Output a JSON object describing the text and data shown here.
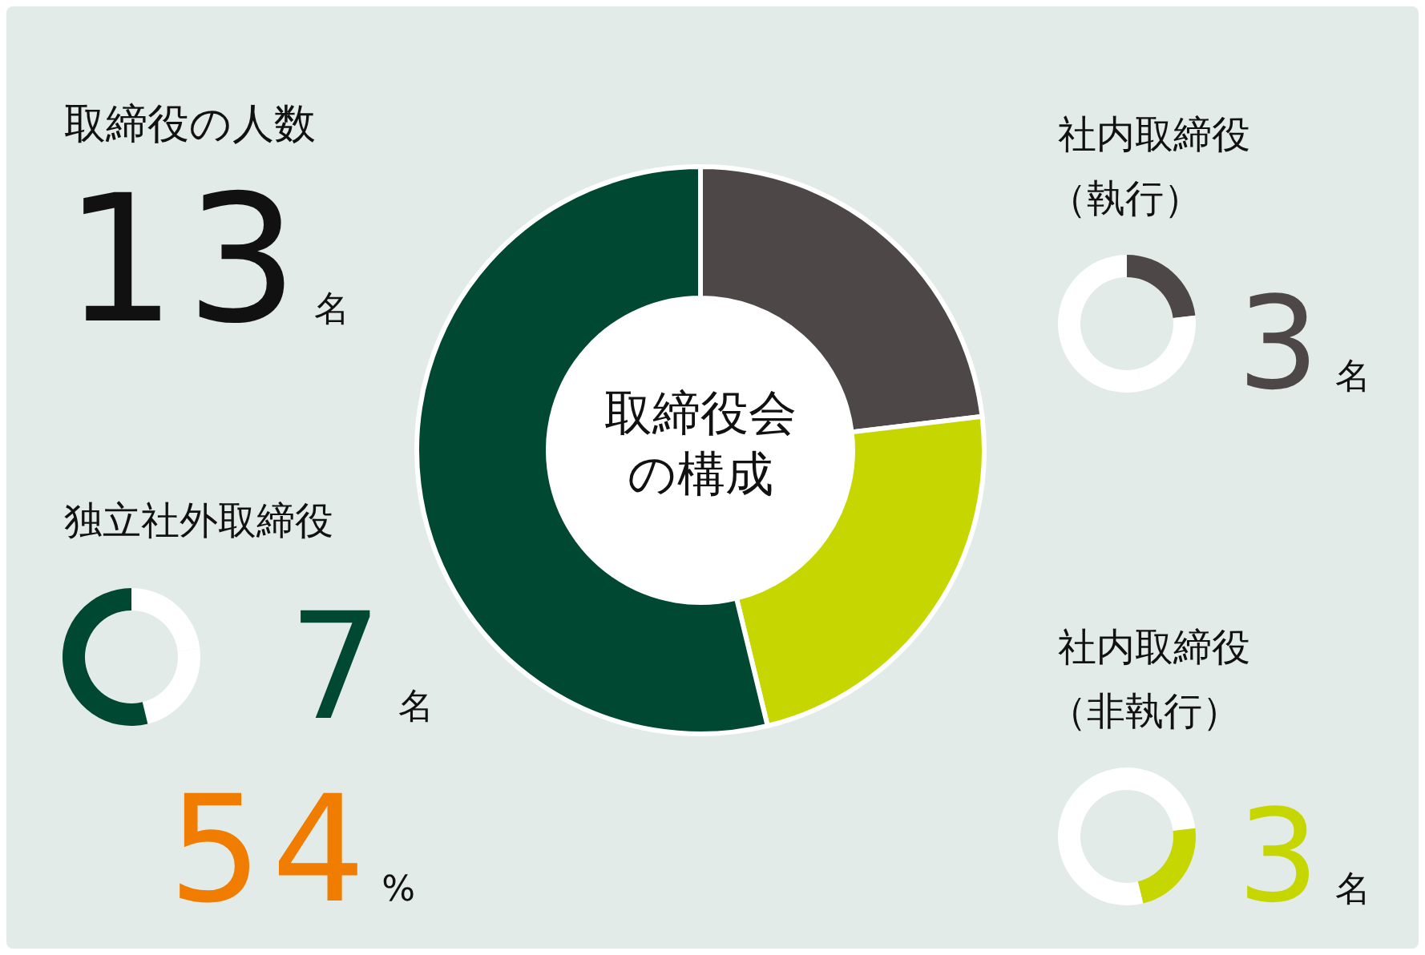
{
  "chart_data": [
    {
      "type": "donut",
      "title": "取締役会の構成",
      "categories": [
        null,
        null,
        null
      ],
      "values": [
        23.1,
        23.1,
        53.8
      ],
      "colors": [
        "#4d4847",
        "#c5d600",
        "#004831"
      ],
      "annotations": [
        "取締役の人数",
        "13名"
      ]
    },
    {
      "type": "donut",
      "title": "独立社外取締役",
      "categories": [
        null,
        null,
        null
      ],
      "values": [
        23.1,
        23.1,
        53.8
      ],
      "colors": [
        "#ffffff",
        "#ffffff",
        "#004831"
      ],
      "annotations": [
        "7名",
        "54%"
      ]
    },
    {
      "type": "donut",
      "title": "社内取締役",
      "subtitle": "（執行）",
      "categories": [
        null,
        null,
        null
      ],
      "values": [
        23.1,
        23.1,
        53.8
      ],
      "colors": [
        "#4d4847",
        "#ffffff",
        "#ffffff"
      ],
      "annotations": [
        "3名"
      ]
    },
    {
      "type": "donut",
      "title": "社内取締役",
      "subtitle": "（非執行）",
      "categories": [
        null,
        null,
        null
      ],
      "values": [
        23.1,
        23.1,
        53.8
      ],
      "colors": [
        "#ffffff",
        "#c5d600",
        "#ffffff"
      ],
      "annotations": [
        "3名"
      ]
    }
  ]
}
